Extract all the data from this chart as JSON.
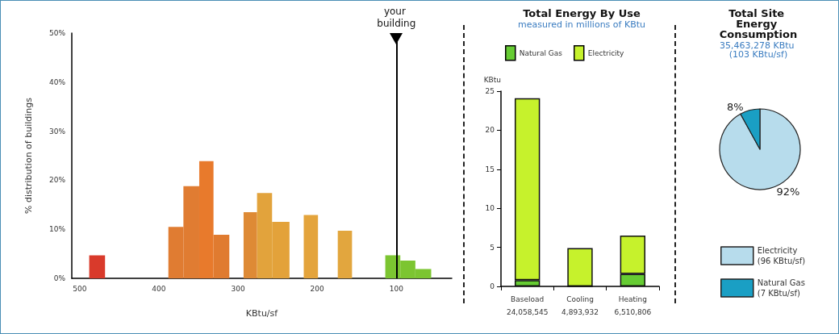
{
  "chart_data": [
    {
      "type": "histogram",
      "xlabel": "KBtu/sf",
      "ylabel": "% distribution of buildings",
      "bins": [
        56,
        76,
        95,
        114,
        156,
        174,
        199,
        217,
        235,
        257,
        276,
        293,
        311,
        331,
        349,
        369,
        388,
        468,
        488
      ],
      "values": [
        1.9,
        3.6,
        4.7,
        0,
        9.7,
        0,
        12.9,
        0,
        11.5,
        17.4,
        13.5,
        0,
        8.9,
        23.9,
        18.8,
        10.5,
        0,
        4.7
      ],
      "colors": [
        "#7cc531",
        "#7cc531",
        "#7cc531",
        "#7cc531",
        "#e2a63e",
        "#e2a63e",
        "#e4a43c",
        "#e4a43c",
        "#e3a23a",
        "#e2a33c",
        "#de8a35",
        "#de8a35",
        "#e07b30",
        "#e87a2c",
        "#e07c32",
        "#e07c32",
        "#d93a2b",
        "#d93a2b"
      ],
      "xlim": [
        510,
        30
      ],
      "xticks": [
        500,
        400,
        300,
        200,
        100
      ],
      "ylim": [
        0,
        50
      ],
      "yticks": [
        {
          "value": 0,
          "label": "0%"
        },
        {
          "value": 10,
          "label": "10%"
        },
        {
          "value": 20,
          "label": "20%"
        },
        {
          "value": 30,
          "label": "30%"
        },
        {
          "value": 40,
          "label": "40%"
        },
        {
          "value": 50,
          "label": "50%"
        }
      ],
      "ref_lines": [
        {
          "axis": "x",
          "value": 100,
          "label": "your building",
          "color": "#000000"
        }
      ],
      "grid": false
    },
    {
      "type": "bar",
      "title": "Total Energy By Use",
      "subtitle": "measured in millions of KBtu",
      "ylabel": "KBtu",
      "categories": [
        "Baseload\n24,058,545",
        "Cooling\n4,893,932",
        "Heating\n6,510,806"
      ],
      "stacked": true,
      "series": [
        {
          "name": "Natural Gas",
          "color": "#66cc33",
          "values": [
            0.8,
            0,
            1.6
          ]
        },
        {
          "name": "Electricity",
          "color": "#c6f22c",
          "values": [
            23.3,
            4.9,
            4.9
          ]
        }
      ],
      "ylim": [
        0,
        25
      ],
      "yticks": [
        0,
        5,
        10,
        15,
        20,
        25
      ],
      "grid": false,
      "legend": "top"
    },
    {
      "type": "pie",
      "title": "Total Site Energy Consumption",
      "subtitle": "35,463,278 KBtu (103 KBtu/sf)",
      "categories": [
        "Electricity (96 KBtu/sf)",
        "Natural Gas (7 KBtu/sf)"
      ],
      "values": [
        92,
        8
      ],
      "colors": [
        "#b7dcec",
        "#1a9fc4"
      ],
      "value_labels": [
        "92%",
        "8%"
      ],
      "legend": "bottom"
    }
  ]
}
